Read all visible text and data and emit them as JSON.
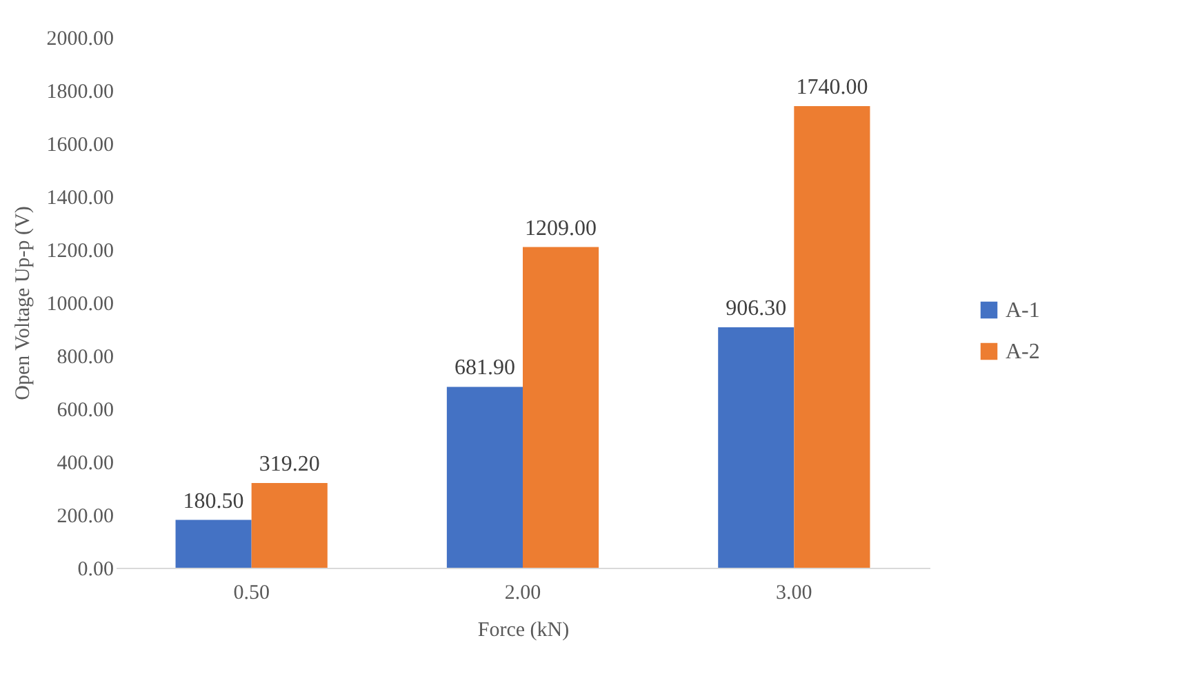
{
  "chart_data": {
    "type": "bar",
    "xlabel": "Force (kN)",
    "ylabel": "Open Voltage Up-p (V)",
    "categories": [
      "0.50",
      "2.00",
      "3.00"
    ],
    "series": [
      {
        "name": "A-1",
        "color": "#4472c4",
        "values": [
          180.5,
          681.9,
          906.3
        ],
        "value_labels": [
          "180.50",
          "681.90",
          "906.30"
        ]
      },
      {
        "name": "A-2",
        "color": "#ed7d31",
        "values": [
          319.2,
          1209,
          1740
        ],
        "value_labels": [
          "319.20",
          "1209.00",
          "1740.00"
        ]
      }
    ],
    "ylim": [
      0,
      2000
    ],
    "yticks": [
      {
        "value": 0,
        "label": "0.00"
      },
      {
        "value": 200,
        "label": "200.00"
      },
      {
        "value": 400,
        "label": "400.00"
      },
      {
        "value": 600,
        "label": "600.00"
      },
      {
        "value": 800,
        "label": "800.00"
      },
      {
        "value": 1000,
        "label": "1000.00"
      },
      {
        "value": 1200,
        "label": "1200.00"
      },
      {
        "value": 1400,
        "label": "1400.00"
      },
      {
        "value": 1600,
        "label": "1600.00"
      },
      {
        "value": 1800,
        "label": "1800.00"
      },
      {
        "value": 2000,
        "label": "2000.00"
      }
    ],
    "grid": false,
    "legend": "right"
  }
}
